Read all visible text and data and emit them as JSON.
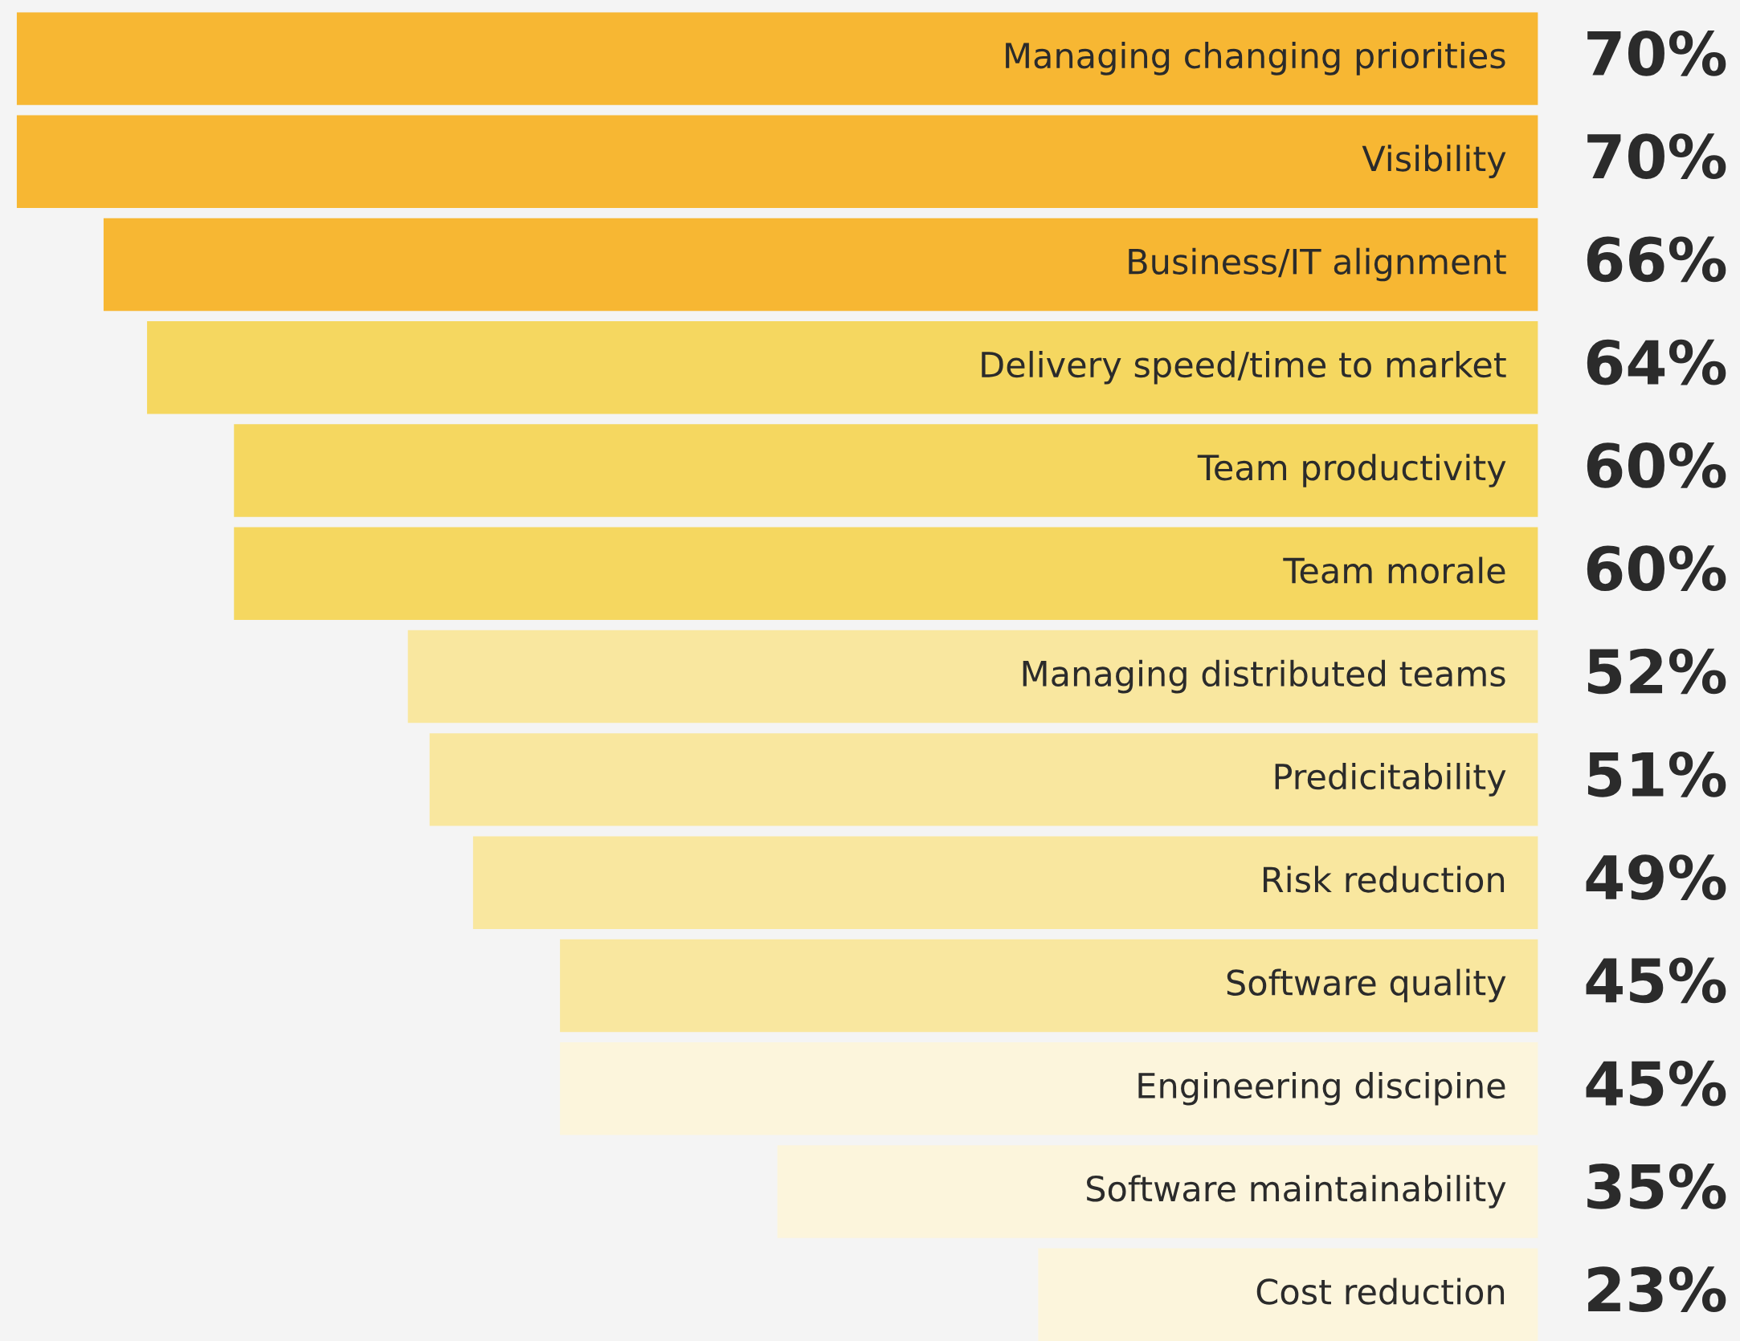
{
  "chart_data": {
    "type": "bar",
    "orientation": "horizontal",
    "categories": [
      "Managing changing priorities",
      "Visibility",
      "Business/IT alignment",
      "Delivery speed/time to market",
      "Team productivity",
      "Team morale",
      "Managing distributed teams",
      "Predicitability",
      "Risk reduction",
      "Software quality",
      "Engineering discipine",
      "Software maintainability",
      "Cost reduction"
    ],
    "values": [
      70,
      70,
      66,
      64,
      60,
      60,
      52,
      51,
      49,
      45,
      45,
      35,
      23
    ],
    "value_labels": [
      "70%",
      "70%",
      "66%",
      "64%",
      "60%",
      "60%",
      "52%",
      "51%",
      "49%",
      "45%",
      "45%",
      "35%",
      "23%"
    ],
    "colors": [
      "#f7b733",
      "#f7b733",
      "#f7b733",
      "#f5d760",
      "#f5d760",
      "#f5d760",
      "#f9e79f",
      "#f9e79f",
      "#f9e79f",
      "#f9e79f",
      "#fcf5dc",
      "#fcf5dc",
      "#fcf5dc"
    ]
  }
}
